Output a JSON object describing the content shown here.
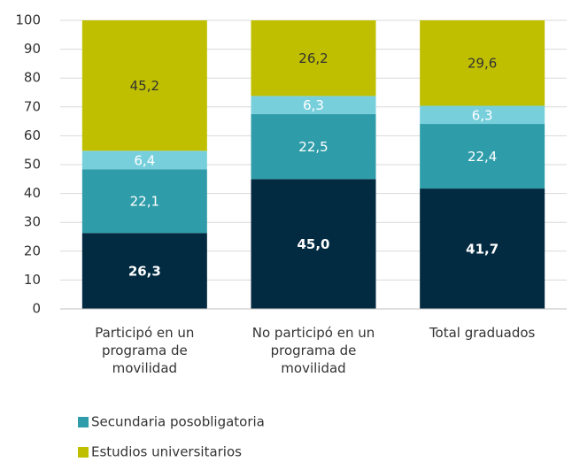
{
  "chart_data": {
    "type": "stacked_bar",
    "categories": [
      "Participó en un programa de movilidad",
      "No participó en un programa de movilidad",
      "Total graduados"
    ],
    "series": [
      {
        "color": "#022a40",
        "values": [
          26.3,
          45.0,
          41.7
        ],
        "value_labels": [
          "26,3",
          "45,0",
          "41,7"
        ]
      },
      {
        "name": "Secundaria posobligatoria",
        "color": "#2f9da9",
        "values": [
          22.1,
          22.5,
          22.4
        ],
        "value_labels": [
          "22,1",
          "22,5",
          "22,4"
        ]
      },
      {
        "color": "#78cfdc",
        "values": [
          6.4,
          6.3,
          6.3
        ],
        "value_labels": [
          "6,4",
          "6,3",
          "6,3"
        ]
      },
      {
        "name": "Estudios universitarios",
        "color": "#bfbf00",
        "values": [
          45.2,
          26.2,
          29.6
        ],
        "value_labels": [
          "45,2",
          "26,2",
          "29,6"
        ]
      }
    ],
    "ylim": [
      0,
      100
    ],
    "yticks": [
      0,
      10,
      20,
      30,
      40,
      50,
      60,
      70,
      80,
      90,
      100
    ],
    "grid": true
  }
}
